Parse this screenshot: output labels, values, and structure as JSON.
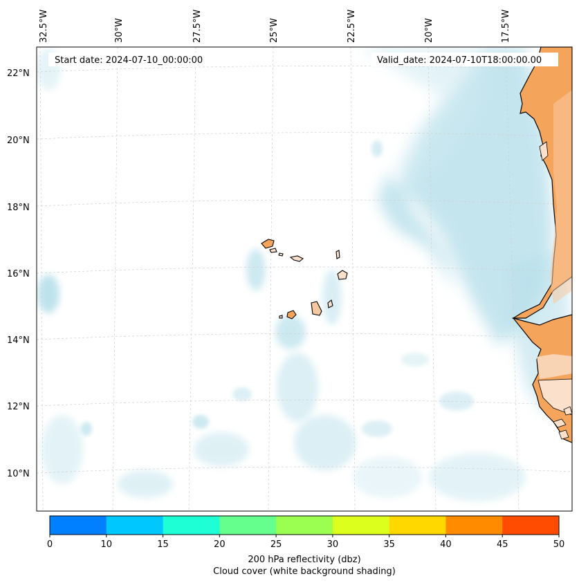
{
  "header": {
    "start_date": "Start date: 2024-07-10_00:00:00",
    "valid_date": "Valid_date: 2024-07-10T18:00:00.00"
  },
  "map": {
    "lon_labels": [
      "32.5°W",
      "30°W",
      "27.5°W",
      "25°W",
      "22.5°W",
      "20°W",
      "17.5°W"
    ],
    "lat_labels": [
      "22°N",
      "20°N",
      "18°N",
      "16°N",
      "14°N",
      "12°N",
      "10°N"
    ],
    "colors": {
      "land": "#f5a45c",
      "land_light": "#f8c9a0",
      "cloud": "#a9d9e6",
      "coast": "#000000",
      "grid": "#c8c8c8"
    }
  },
  "colorbar": {
    "ticks": [
      "0",
      "10",
      "15",
      "20",
      "25",
      "30",
      "35",
      "40",
      "45",
      "50"
    ],
    "colors": [
      "#0080ff",
      "#00c8ff",
      "#1effd6",
      "#64ff8c",
      "#9aff50",
      "#dcff1e",
      "#ffd800",
      "#ff8c00",
      "#ff4c00"
    ],
    "label_line1": "200 hPa reflectivity (dbz)",
    "label_line2": "Cloud cover (white background shading)"
  }
}
